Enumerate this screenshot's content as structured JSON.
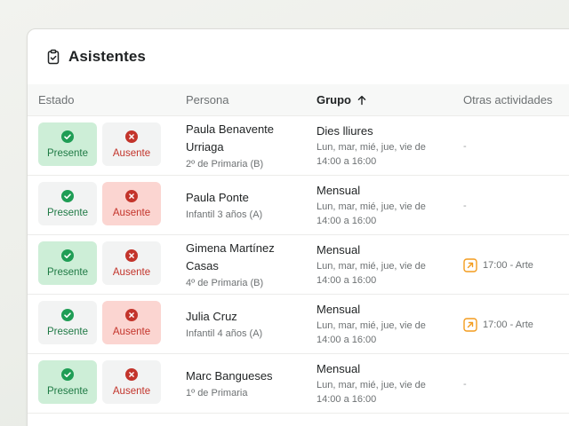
{
  "card": {
    "title": "Asistentes",
    "title_icon": "clipboard-check-icon"
  },
  "columns": {
    "estado": "Estado",
    "persona": "Persona",
    "grupo": "Grupo",
    "otras": "Otras actividades",
    "sort_icon": "arrow-up-icon"
  },
  "state_labels": {
    "present": "Presente",
    "absent": "Ausente"
  },
  "colors": {
    "present_green": "#1f9d55",
    "present_bg": "#cdeed7",
    "absent_red": "#c3342b",
    "absent_bg": "#fbd5d1",
    "activity_orange": "#f39c1e"
  },
  "rows": [
    {
      "name": "Paula Benavente Urriaga",
      "class": "2º de Primaria (B)",
      "state": "present",
      "group": "Dies lliures",
      "schedule": "Lun, mar, mié, jue, vie de 14:00 a 16:00",
      "other": "-"
    },
    {
      "name": "Paula Ponte",
      "class": "Infantil 3 años (A)",
      "state": "absent",
      "group": "Mensual",
      "schedule": "Lun, mar, mié, jue, vie de 14:00 a 16:00",
      "other": "-"
    },
    {
      "name": "Gimena Martínez Casas",
      "class": "4º de Primaria (B)",
      "state": "present",
      "group": "Mensual",
      "schedule": "Lun, mar, mié, jue, vie de 14:00 a 16:00",
      "other": "17:00 - Arte",
      "other_icon": "arrow-up-right-icon"
    },
    {
      "name": "Julia Cruz",
      "class": "Infantil 4 años (A)",
      "state": "absent",
      "group": "Mensual",
      "schedule": "Lun, mar, mié, jue, vie de 14:00 a 16:00",
      "other": "17:00 - Arte",
      "other_icon": "arrow-up-right-icon"
    },
    {
      "name": "Marc Bangueses",
      "class": "1º de Primaria",
      "state": "present",
      "group": "Mensual",
      "schedule": "Lun, mar, mié, jue, vie de 14:00 a 16:00",
      "other": "-"
    }
  ]
}
